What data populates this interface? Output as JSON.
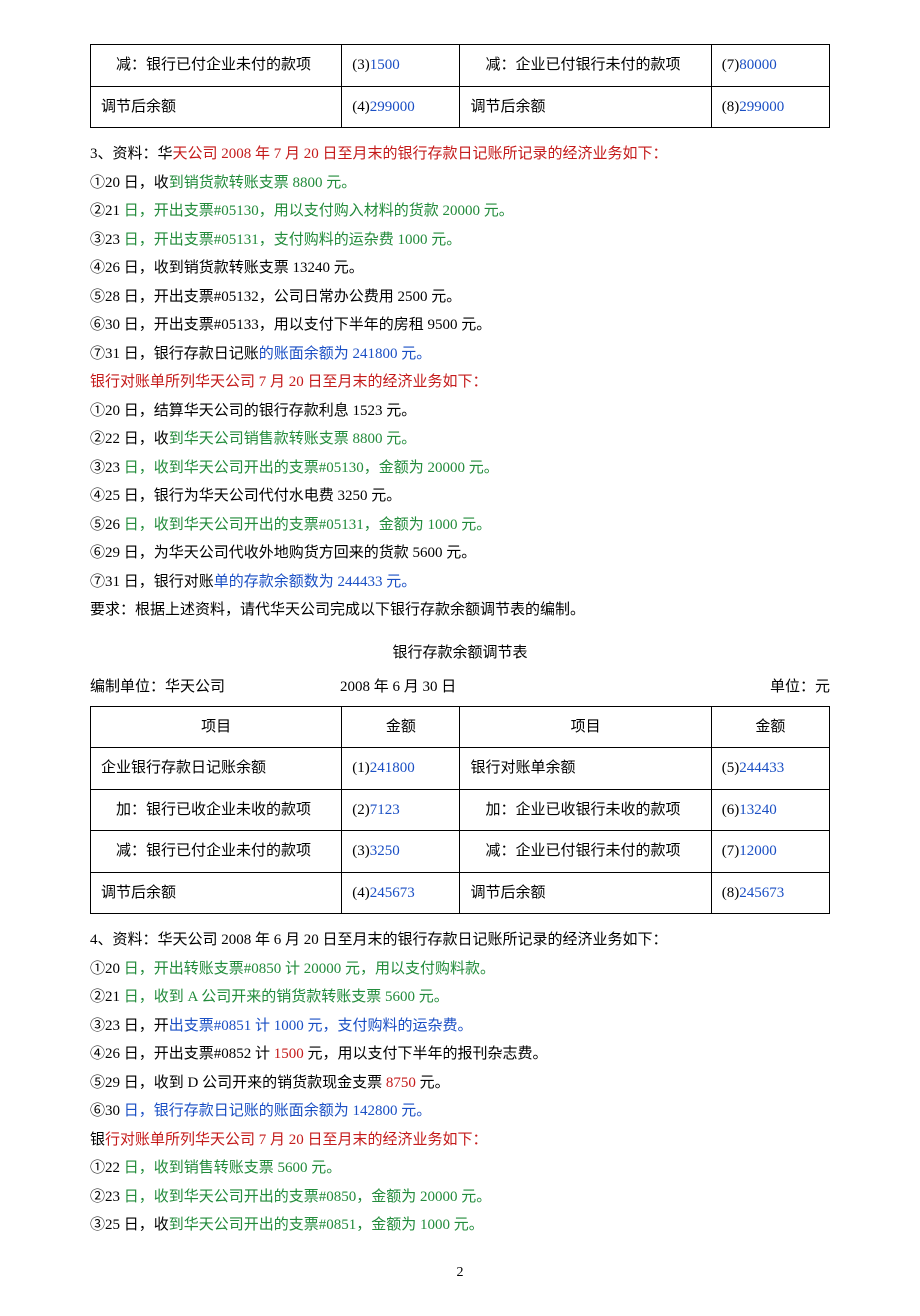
{
  "colors": {
    "blue": "#1a4fc4",
    "red": "#c41a1a",
    "green": "#228b3b",
    "black": "#000000"
  },
  "t1": {
    "r1": {
      "a": "　减：银行已付企业未付的款项",
      "b_pre": "(3)",
      "b_val": "1500",
      "c": "　减：企业已付银行未付的款项",
      "d_pre": "(7)",
      "d_val": "80000"
    },
    "r2": {
      "a": "调节后余额",
      "b_pre": "(4)",
      "b_val": "299000",
      "c": "调节后余额",
      "d_pre": "(8)",
      "d_val": "299000"
    }
  },
  "s3": {
    "head": [
      {
        "t": "3、资料：华",
        "c": "black"
      },
      {
        "t": "天公司 2008 年 7 月 20 日至月末的银行存款日记账所记录的经济业务如下：",
        "c": "red"
      }
    ],
    "a": [
      [
        {
          "t": "①20 日，收",
          "c": "black"
        },
        {
          "t": "到销货款转账支票 8800 元。",
          "c": "green"
        }
      ],
      [
        {
          "t": "②21 ",
          "c": "black"
        },
        {
          "t": "日，开出支票#05130，用以支付购入材料的货款 20000 元。",
          "c": "green"
        }
      ],
      [
        {
          "t": "③23 ",
          "c": "black"
        },
        {
          "t": "日，开出支票#05131，支付购料的运杂费 1000 元。",
          "c": "green"
        }
      ],
      [
        {
          "t": "④26 日，收到销货款转账支票 13240 元。",
          "c": "black"
        }
      ],
      [
        {
          "t": "⑤28 日，开出支票#05132，公司日常办公费用 2500 元。",
          "c": "black"
        }
      ],
      [
        {
          "t": "⑥30 日，开出支票#05133，用以支付下半年的房租 9500 元。",
          "c": "black"
        }
      ],
      [
        {
          "t": "⑦31 日，银行存款日记账",
          "c": "black"
        },
        {
          "t": "的账面余额为 241800 元。",
          "c": "blue"
        }
      ]
    ],
    "mid": [
      {
        "t": "银行对账单所列华天公司 7 月 20 日至月末的经济业务如下：",
        "c": "red"
      }
    ],
    "b": [
      [
        {
          "t": "①20 日，结算华天公司的银行存款利息 1523 元。",
          "c": "black"
        }
      ],
      [
        {
          "t": "②22 日，收",
          "c": "black"
        },
        {
          "t": "到华天公司销售款转账支票 8800 元。",
          "c": "green"
        }
      ],
      [
        {
          "t": "③23 ",
          "c": "black"
        },
        {
          "t": "日，收到华天公司开出的支票#05130，金额为 20000 元。",
          "c": "green"
        }
      ],
      [
        {
          "t": "④25 日，银行为华天公司代付水电费 3250 元。",
          "c": "black"
        }
      ],
      [
        {
          "t": "⑤26 ",
          "c": "black"
        },
        {
          "t": "日，收到华天公司开出的支票#05131，金额为 1000 元。",
          "c": "green"
        }
      ],
      [
        {
          "t": "⑥29 日，为华天公司代收外地购货方回来的货款 5600 元。",
          "c": "black"
        }
      ],
      [
        {
          "t": "⑦31 日，银行对账",
          "c": "black"
        },
        {
          "t": "单的存款余额数为 244433 元。",
          "c": "blue"
        }
      ]
    ],
    "req": "要求：根据上述资料，请代华天公司完成以下银行存款余额调节表的编制。"
  },
  "t2": {
    "title": "银行存款余额调节表",
    "meta": {
      "unit": "编制单位：华天公司",
      "date": "2008 年 6 月 30 日",
      "cur": "单位：元"
    },
    "h": {
      "a": "项目",
      "b": "金额",
      "c": "项目",
      "d": "金额"
    },
    "r": [
      {
        "a": "企业银行存款日记账余额",
        "b_pre": "(1)",
        "b_val": "241800",
        "c": "银行对账单余额",
        "d_pre": "(5)",
        "d_val": "244433"
      },
      {
        "a": "　加：银行已收企业未收的款项",
        "b_pre": "(2)",
        "b_val": "7123",
        "c": "　加：企业已收银行未收的款项",
        "d_pre": "(6)",
        "d_val": "13240"
      },
      {
        "a": "　减：银行已付企业未付的款项",
        "b_pre": "(3)",
        "b_val": "3250",
        "c": "　减：企业已付银行未付的款项",
        "d_pre": "(7)",
        "d_val": "12000"
      },
      {
        "a": "调节后余额",
        "b_pre": "(4)",
        "b_val": "245673",
        "c": "调节后余额",
        "d_pre": "(8)",
        "d_val": "245673"
      }
    ]
  },
  "s4": {
    "head": [
      {
        "t": "4、资料：华天公司 2008 年 6 月 20 日至月末的银行存款日记账所记录的经济业务如下：",
        "c": "black"
      }
    ],
    "a": [
      [
        {
          "t": "①20 ",
          "c": "black"
        },
        {
          "t": "日，开出转账支票#0850 计 20000 元，用以支付购料款。",
          "c": "green"
        }
      ],
      [
        {
          "t": "②21 ",
          "c": "black"
        },
        {
          "t": "日，收到 A 公司开来的销货款转账支票 5600 元。",
          "c": "green"
        }
      ],
      [
        {
          "t": "③23 日，开",
          "c": "black"
        },
        {
          "t": "出支票#0851 计 1000 元，支付购料的运杂费。",
          "c": "blue"
        }
      ],
      [
        {
          "t": "④26 日，开出支票#0852 计 ",
          "c": "black"
        },
        {
          "t": "1500",
          "c": "red"
        },
        {
          "t": " 元，用以支付下半年的报刊杂志费。",
          "c": "black"
        }
      ],
      [
        {
          "t": "⑤29 日，收到 D 公司开来的销货款现金支票 ",
          "c": "black"
        },
        {
          "t": "8750",
          "c": "red"
        },
        {
          "t": " 元。",
          "c": "black"
        }
      ],
      [
        {
          "t": "⑥30 ",
          "c": "black"
        },
        {
          "t": "日，银行存款日记账的账面余额为 142800 元。",
          "c": "blue"
        }
      ]
    ],
    "mid": [
      {
        "t": "银",
        "c": "black"
      },
      {
        "t": "行对账单所列华天公司 7 月 20 日至月末的经济业务如下：",
        "c": "red"
      }
    ],
    "b": [
      [
        {
          "t": "①22 ",
          "c": "black"
        },
        {
          "t": "日，收到销售转账支票 5600 元。",
          "c": "green"
        }
      ],
      [
        {
          "t": "②23 ",
          "c": "black"
        },
        {
          "t": "日，收到华天公司开出的支票#0850，金额为 20000 元。",
          "c": "green"
        }
      ],
      [
        {
          "t": "③25 日，收",
          "c": "black"
        },
        {
          "t": "到华天公司开出的支票#0851，金额为 1000 元。",
          "c": "green"
        }
      ]
    ]
  },
  "page": "2"
}
